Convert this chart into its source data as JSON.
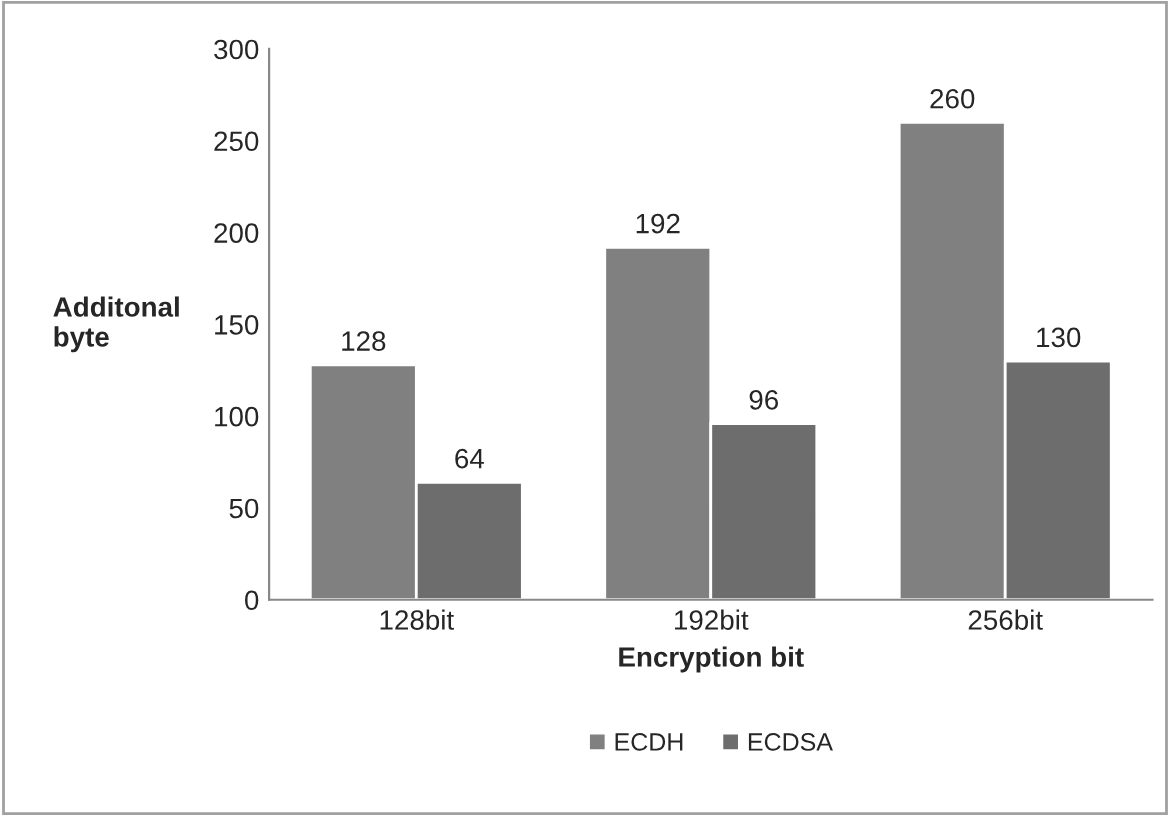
{
  "chart_data": {
    "type": "bar",
    "xlabel": "Encryption bit",
    "ylabel": "Additonal\nbyte",
    "categories": [
      "128bit",
      "192bit",
      "256bit"
    ],
    "series": [
      {
        "name": "ECDH",
        "color": "#808080",
        "values": [
          128,
          192,
          260
        ]
      },
      {
        "name": "ECDSA",
        "color": "#6d6d6d",
        "values": [
          64,
          96,
          130
        ]
      }
    ],
    "ylim": [
      0,
      300
    ],
    "yticks": [
      0,
      50,
      100,
      150,
      200,
      250,
      300
    ],
    "data_labels": true,
    "grid": false,
    "legend": "bottom"
  }
}
